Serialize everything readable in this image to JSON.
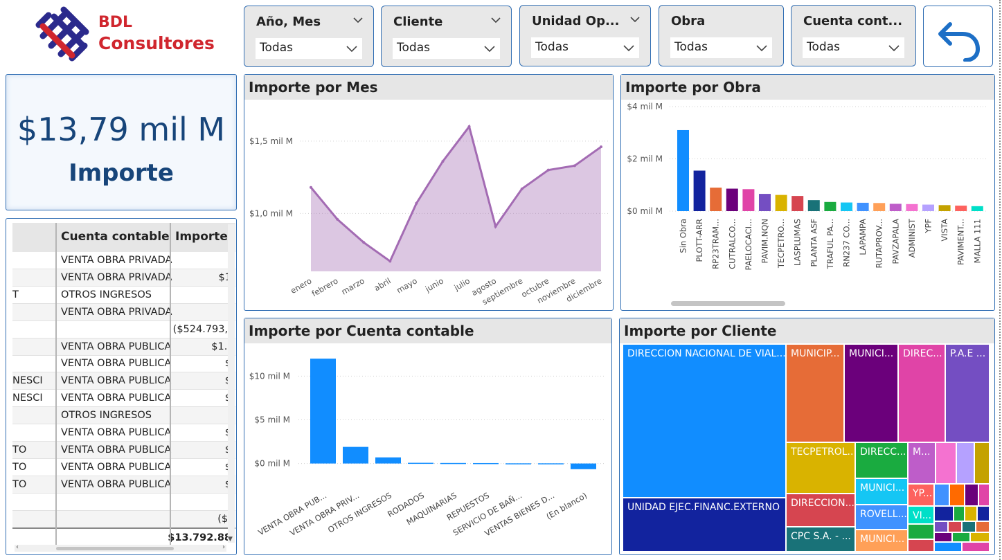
{
  "logo": {
    "line1": "BDL",
    "line2": "Consultores"
  },
  "filters": [
    {
      "title": "Año, Mes",
      "value": "Todas"
    },
    {
      "title": "Cliente",
      "value": "Todas"
    },
    {
      "title": "Unidad Op...",
      "value": "Todas"
    },
    {
      "title": "Obra",
      "value": "Todas"
    },
    {
      "title": "Cuenta cont...",
      "value": "Todas"
    }
  ],
  "back_icon": "undo-arrow-icon",
  "kpi": {
    "value": "$13,79 mil M",
    "label": "Importe"
  },
  "table": {
    "headers": [
      "",
      "Cuenta contable",
      "Importe"
    ],
    "rows": [
      [
        "",
        "VENTA OBRA PRIVADA",
        ""
      ],
      [
        "",
        "VENTA OBRA PRIVADA",
        "$1"
      ],
      [
        "T",
        "OTROS INGRESOS",
        ""
      ],
      [
        "",
        "VENTA OBRA PRIVADA",
        ""
      ],
      [
        "",
        "",
        "($524.793,:"
      ],
      [
        "",
        "VENTA OBRA PUBLICA",
        "$1.("
      ],
      [
        "",
        "VENTA OBRA PUBLICA",
        "$"
      ],
      [
        "NESCI",
        "VENTA OBRA PUBLICA",
        "$"
      ],
      [
        "NESCI",
        "VENTA OBRA PUBLICA",
        "$"
      ],
      [
        "",
        "OTROS INGRESOS",
        ""
      ],
      [
        "",
        "VENTA OBRA PUBLICA",
        "$"
      ],
      [
        "TO",
        "VENTA OBRA PUBLICA",
        "$"
      ],
      [
        "TO",
        "VENTA OBRA PUBLICA",
        "$"
      ],
      [
        "TO",
        "VENTA OBRA PUBLICA",
        "$"
      ],
      [
        "",
        "",
        ""
      ],
      [
        "",
        "",
        "($:"
      ]
    ],
    "total": "$13.792.88"
  },
  "chart_mes": {
    "title": "Importe por Mes",
    "chart_data": {
      "type": "area",
      "categories": [
        "enero",
        "febrero",
        "marzo",
        "abril",
        "mayo",
        "junio",
        "julio",
        "agosto",
        "septiembre",
        "octubre",
        "noviembre",
        "diciembre"
      ],
      "values": [
        1.18,
        0.96,
        0.8,
        0.67,
        1.07,
        1.36,
        1.6,
        0.91,
        1.17,
        1.3,
        1.33,
        1.46
      ],
      "yticks": [
        {
          "v": 1.0,
          "label": "$1,0 mil M"
        },
        {
          "v": 1.5,
          "label": "$1,5 mil M"
        }
      ],
      "ylim": [
        0.6,
        1.7
      ],
      "color": "#a36bb3"
    }
  },
  "chart_obra": {
    "title": "Importe por Obra",
    "chart_data": {
      "type": "bar",
      "categories": [
        "Sin Obra",
        "PLOTT-ARR",
        "RP23TRAM...",
        "CUTRALCO...",
        "PAELOCACI...",
        "PAVIM.NQN",
        "TECPETRO...",
        "LASPLUMAS",
        "PLANTA ASF",
        "TRAFUL PA...",
        "RN237 CO...",
        "LAPAMPA",
        "RUTAPROV...",
        "PAVZAPALA",
        "ADMINIST",
        "YPF",
        "VISTA",
        "PAVIMENT...",
        "MALLA 111"
      ],
      "values": [
        3.1,
        1.55,
        0.9,
        0.86,
        0.84,
        0.66,
        0.62,
        0.58,
        0.42,
        0.35,
        0.33,
        0.32,
        0.31,
        0.28,
        0.27,
        0.25,
        0.23,
        0.21,
        0.19
      ],
      "colors": [
        "#118dff",
        "#12239e",
        "#e66c37",
        "#6b007b",
        "#e044a7",
        "#744ec2",
        "#d9b300",
        "#d64550",
        "#197278",
        "#1aab40",
        "#15c6f4",
        "#4092ff",
        "#ffa058",
        "#be5dc9",
        "#f472d0",
        "#b5a1ff",
        "#c4a200",
        "#fd625e",
        "#00dfc8"
      ],
      "yticks": [
        {
          "v": 0,
          "label": "$0 mil M"
        },
        {
          "v": 2,
          "label": "$2 mil M"
        },
        {
          "v": 4,
          "label": "$4 mil M"
        }
      ],
      "ylim": [
        0,
        4
      ]
    }
  },
  "chart_cuenta": {
    "title": "Importe por Cuenta contable",
    "chart_data": {
      "type": "bar",
      "categories": [
        "VENTA OBRA PUB...",
        "VENTA OBRA PRIV...",
        "OTROS INGRESOS",
        "RODADOS",
        "MAQUINARIAS",
        "REPUESTOS",
        "SERVICIO DE BAÑ...",
        "VENTAS BIENES D...",
        "(En blanco)"
      ],
      "values": [
        12.0,
        1.9,
        0.7,
        0.08,
        0.06,
        0.05,
        0.02,
        0.02,
        -0.65
      ],
      "yticks": [
        {
          "v": 0,
          "label": "$0 mil M"
        },
        {
          "v": 5,
          "label": "$5 mil M"
        },
        {
          "v": 10,
          "label": "$10 mil M"
        }
      ],
      "ylim": [
        -1.3,
        12.8
      ],
      "color": "#118dff"
    }
  },
  "chart_cliente": {
    "title": "Importe por Cliente",
    "labels": {
      "dnv": "DIRECCION NACIONAL DE VIAL...",
      "unidad": "UNIDAD EJEC.FINANC.EXTERNO",
      "munic1": "MUNICIP...",
      "munic2": "MUNICI...",
      "direc1": "DIREC...",
      "pae": "P.A.E ...",
      "tecpetrol": "TECPETROL...",
      "direcc2": "DIRECC...",
      "m": "M...",
      "direccion3": "DIRECCION...",
      "munic3": "MUNICI...",
      "yp": "YP...",
      "rovell": "ROVELL...",
      "vi": "VI...",
      "cpc": "CPC S.A. - ...",
      "munic4": "MUNICI..."
    }
  }
}
